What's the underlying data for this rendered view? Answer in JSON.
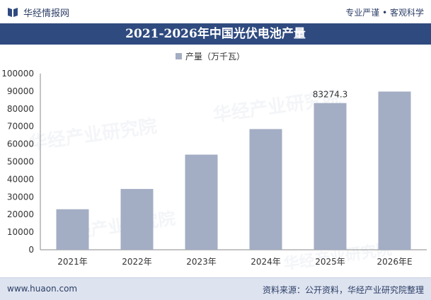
{
  "header": {
    "brand": "华经情报网",
    "slogan": "专业严谨 • 客观科学"
  },
  "colors": {
    "title_bar": "#2f4a7f",
    "bar": "#a3adc4",
    "footer_bg": "#dde3ef"
  },
  "icons": {
    "logo": "book-logo-icon"
  },
  "watermark": "华经产业研究院",
  "chart_data": {
    "type": "bar",
    "title": "2021-2026年中国光伏电池产量",
    "categories": [
      "2021年",
      "2022年",
      "2023年",
      "2024年",
      "2025年",
      "2026年E"
    ],
    "series": [
      {
        "name": "产量（万千瓦）",
        "values": [
          23000,
          34500,
          54000,
          68500,
          83274.3,
          89800
        ]
      }
    ],
    "data_labels": [
      {
        "category": "2025年",
        "text": "83274.3"
      }
    ],
    "ylim": [
      0,
      100000
    ],
    "yticks": [
      "0",
      "10000",
      "20000",
      "30000",
      "40000",
      "50000",
      "60000",
      "70000",
      "80000",
      "90000",
      "100000"
    ],
    "grid": false,
    "legend_position": "top-center"
  },
  "footer": {
    "site": "www.huaon.com",
    "source": "资料来源：公开资料，华经产业研究院整理"
  }
}
